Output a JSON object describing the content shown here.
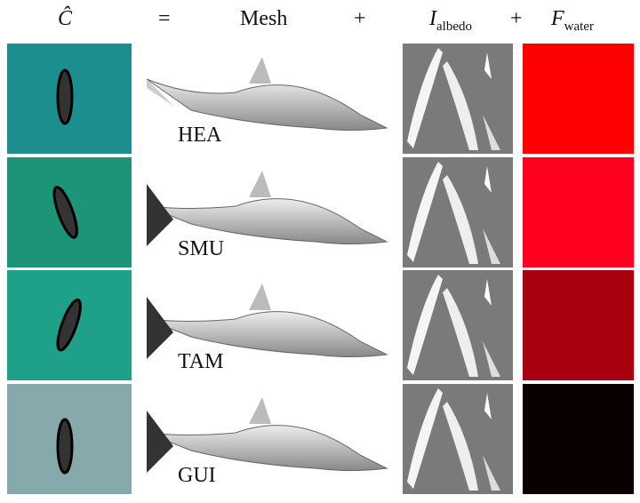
{
  "header": {
    "c_hat": "Ĉ",
    "equals": "=",
    "mesh": "Mesh",
    "plus1": "+",
    "i": "I",
    "albedo": "albedo",
    "plus2": "+",
    "f": "F",
    "water": "water"
  },
  "rows": [
    {
      "label": "HEA",
      "photo_color": "#1b8e8e",
      "water_color": "#ff0000"
    },
    {
      "label": "SMU",
      "photo_color": "#1c9478",
      "water_color": "#ff0020"
    },
    {
      "label": "TAM",
      "photo_color": "#1fa088",
      "water_color": "#a8000f"
    },
    {
      "label": "GUI",
      "photo_color": "#86a9ab",
      "water_color": "#0a0000"
    }
  ]
}
